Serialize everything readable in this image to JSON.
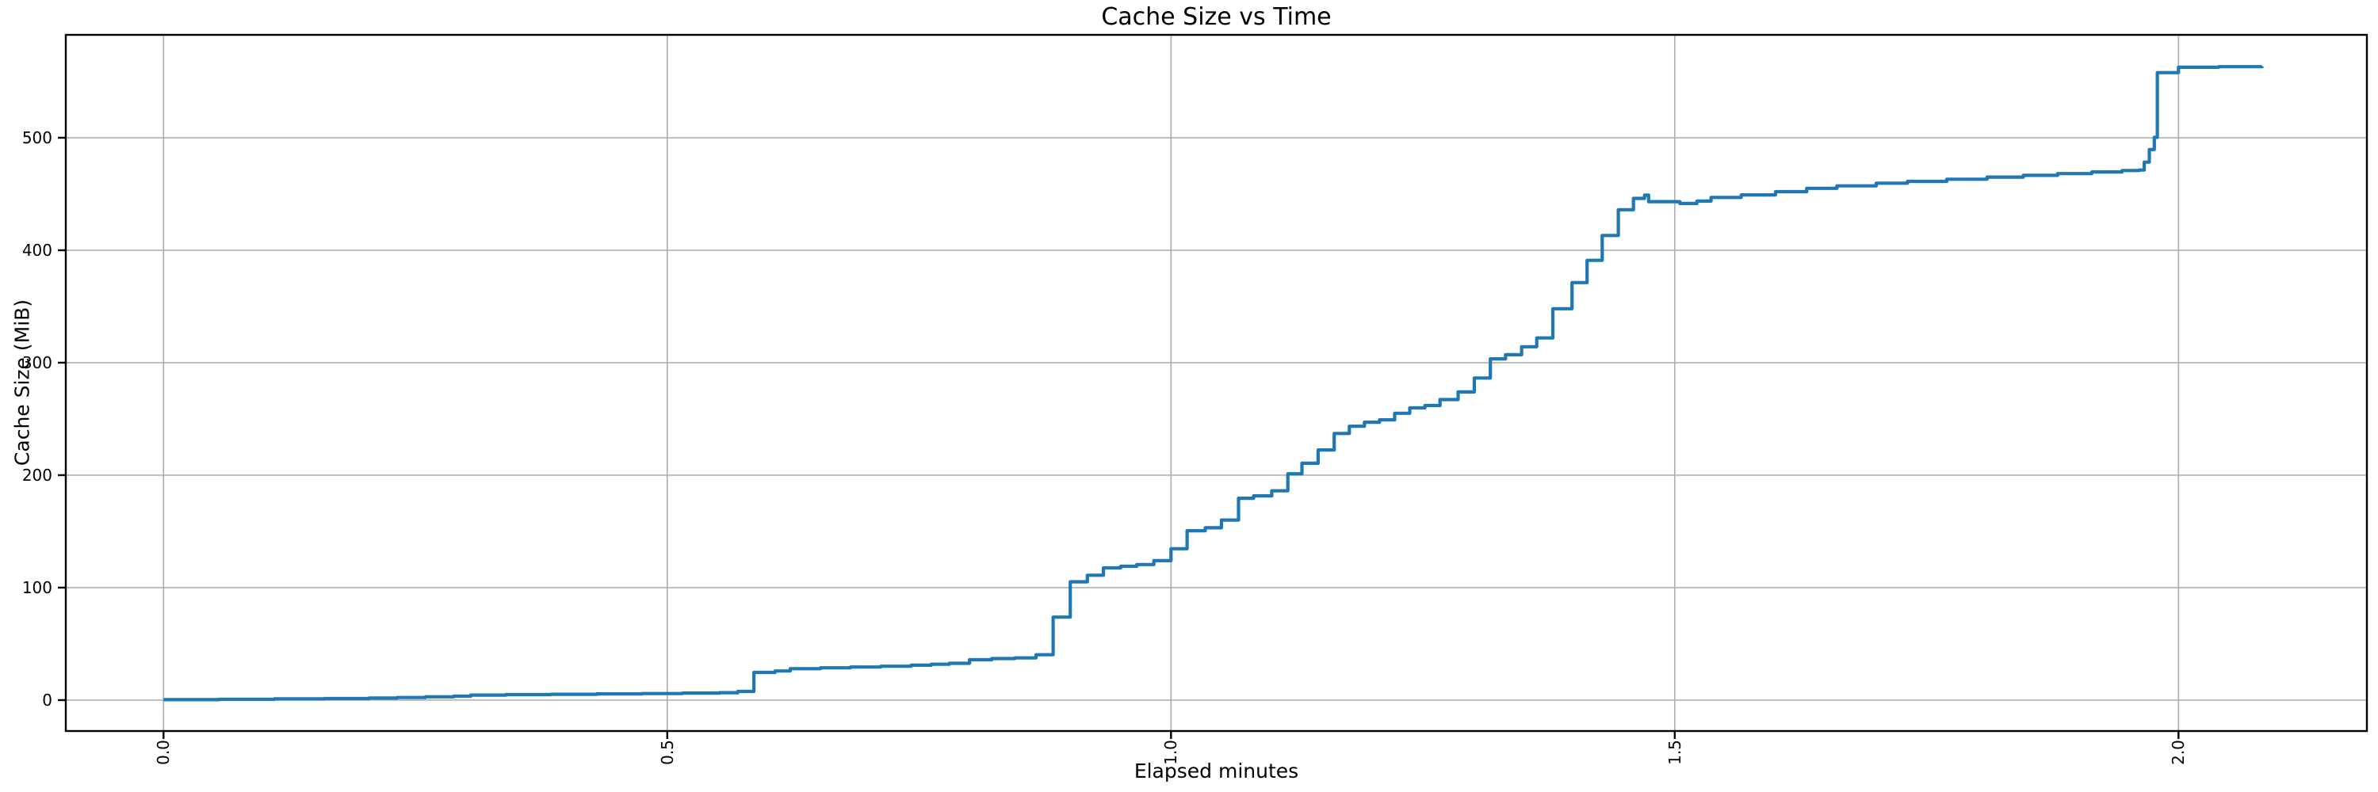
{
  "chart_data": {
    "type": "line",
    "subtype": "step-post",
    "title": "Cache Size vs Time",
    "xlabel": "Elapsed minutes",
    "ylabel": "Cache Size (MiB)",
    "grid": true,
    "legend_position": "none",
    "xlim": [
      -0.097,
      2.187
    ],
    "ylim": [
      -27.5,
      591.5
    ],
    "xticks": {
      "values": [
        0.0,
        0.5,
        1.0,
        1.5,
        2.0
      ],
      "labels": [
        "0.0",
        "0.5",
        "1.0",
        "1.5",
        "2.0"
      ],
      "rotation_deg": 90
    },
    "yticks": {
      "values": [
        0,
        100,
        200,
        300,
        400,
        500
      ],
      "labels": [
        "0",
        "100",
        "200",
        "300",
        "400",
        "500"
      ]
    },
    "colors": {
      "line": "#1f77b4",
      "grid": "#b0b0b0",
      "spine": "#000000",
      "background": "#ffffff",
      "text": "#000000"
    },
    "series": [
      {
        "name": "cache-size",
        "points": [
          [
            0.0,
            0.4
          ],
          [
            0.055,
            0.7
          ],
          [
            0.11,
            1.1
          ],
          [
            0.16,
            1.4
          ],
          [
            0.204,
            1.8
          ],
          [
            0.232,
            2.3
          ],
          [
            0.26,
            2.9
          ],
          [
            0.288,
            3.5
          ],
          [
            0.305,
            4.5
          ],
          [
            0.34,
            4.9
          ],
          [
            0.385,
            5.2
          ],
          [
            0.43,
            5.5
          ],
          [
            0.475,
            5.8
          ],
          [
            0.515,
            6.2
          ],
          [
            0.552,
            6.6
          ],
          [
            0.57,
            7.7
          ],
          [
            0.586,
            24.6
          ],
          [
            0.607,
            25.9
          ],
          [
            0.622,
            27.9
          ],
          [
            0.652,
            28.7
          ],
          [
            0.682,
            29.4
          ],
          [
            0.712,
            30.1
          ],
          [
            0.742,
            31.0
          ],
          [
            0.762,
            31.9
          ],
          [
            0.78,
            32.7
          ],
          [
            0.8,
            35.9
          ],
          [
            0.822,
            36.9
          ],
          [
            0.845,
            37.5
          ],
          [
            0.866,
            40.3
          ],
          [
            0.883,
            73.8
          ],
          [
            0.9,
            105.2
          ],
          [
            0.917,
            111.0
          ],
          [
            0.933,
            117.6
          ],
          [
            0.95,
            119.0
          ],
          [
            0.966,
            120.5
          ],
          [
            0.983,
            124.0
          ],
          [
            1.0,
            134.6
          ],
          [
            1.016,
            150.6
          ],
          [
            1.034,
            153.2
          ],
          [
            1.05,
            160.1
          ],
          [
            1.067,
            179.5
          ],
          [
            1.082,
            181.6
          ],
          [
            1.1,
            186.1
          ],
          [
            1.116,
            201.2
          ],
          [
            1.13,
            210.6
          ],
          [
            1.146,
            222.4
          ],
          [
            1.162,
            237.1
          ],
          [
            1.177,
            243.5
          ],
          [
            1.192,
            247.1
          ],
          [
            1.207,
            249.2
          ],
          [
            1.222,
            255.0
          ],
          [
            1.237,
            259.8
          ],
          [
            1.252,
            261.9
          ],
          [
            1.267,
            267.2
          ],
          [
            1.285,
            274.0
          ],
          [
            1.301,
            286.4
          ],
          [
            1.317,
            303.4
          ],
          [
            1.332,
            307.1
          ],
          [
            1.348,
            314.2
          ],
          [
            1.363,
            322.0
          ],
          [
            1.379,
            348.0
          ],
          [
            1.398,
            371.2
          ],
          [
            1.413,
            391.0
          ],
          [
            1.428,
            413.1
          ],
          [
            1.444,
            436.0
          ],
          [
            1.459,
            446.1
          ],
          [
            1.47,
            449.0
          ],
          [
            1.474,
            443.2
          ],
          [
            1.505,
            441.6
          ],
          [
            1.522,
            443.7
          ],
          [
            1.536,
            446.9
          ],
          [
            1.566,
            449.2
          ],
          [
            1.6,
            452.1
          ],
          [
            1.631,
            455.0
          ],
          [
            1.661,
            457.2
          ],
          [
            1.7,
            459.6
          ],
          [
            1.731,
            461.2
          ],
          [
            1.77,
            463.1
          ],
          [
            1.81,
            465.0
          ],
          [
            1.846,
            466.6
          ],
          [
            1.88,
            468.1
          ],
          [
            1.914,
            469.6
          ],
          [
            1.944,
            470.9
          ],
          [
            1.961,
            471.3
          ],
          [
            1.966,
            478.3
          ],
          [
            1.971,
            489.5
          ],
          [
            1.976,
            500.4
          ],
          [
            1.979,
            557.9
          ],
          [
            2.0,
            562.7
          ],
          [
            2.04,
            563.2
          ],
          [
            2.083,
            563.4
          ]
        ]
      }
    ]
  }
}
